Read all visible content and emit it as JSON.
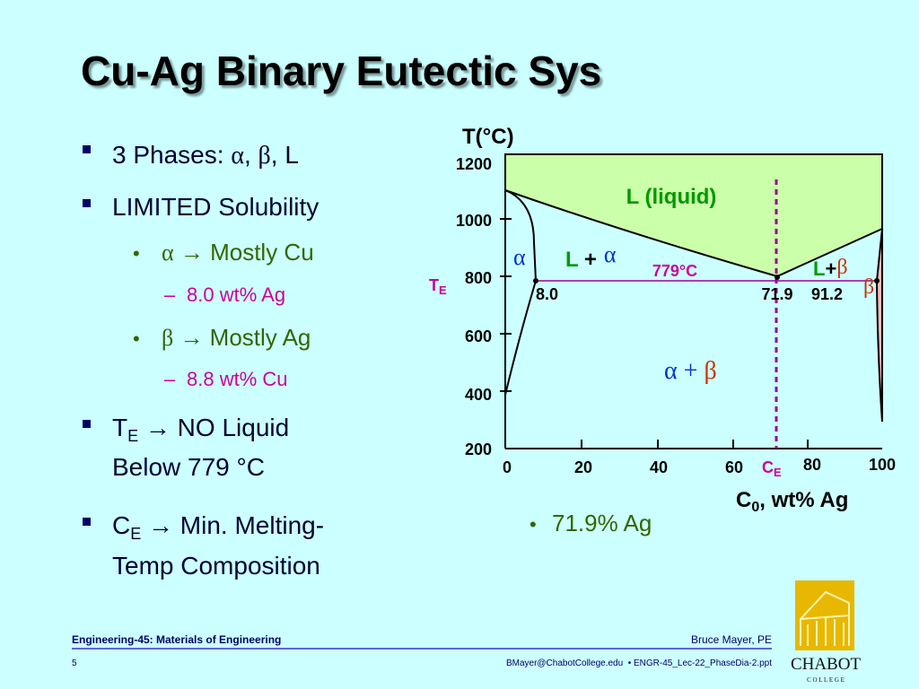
{
  "title": "Cu-Ag Binary Eutectic Sys",
  "bullets": {
    "phases": [
      "3 Phases: ",
      "α",
      ", ",
      "β",
      ", L"
    ],
    "solubility": "LIMITED Solubility",
    "alpha": [
      "α",
      " → Mostly Cu"
    ],
    "alpha_detail": "8.0 wt% Ag",
    "beta": [
      "β",
      " → Mostly Ag"
    ],
    "beta_detail": "8.8 wt% Cu",
    "te": [
      "T",
      "E",
      " → NO Liquid",
      "Below 779 °C"
    ],
    "ce": [
      "C",
      "E",
      " → Min. Melting-",
      "Temp Composition"
    ],
    "ce_value": "71.9% Ag"
  },
  "diagram": {
    "y_label": "T(°C)",
    "x_label": [
      "C",
      "0",
      ", wt% Ag"
    ],
    "y_ticks": [
      "1200",
      "1000",
      "800",
      "600",
      "400",
      "200"
    ],
    "x_ticks": [
      "0",
      "20",
      "40",
      "60",
      "80",
      "100"
    ],
    "ce_label": [
      "C",
      "E"
    ],
    "te_label": [
      "T",
      "E"
    ],
    "liquid": "L (liquid)",
    "alpha": "α",
    "l_alpha": [
      "L",
      " +",
      "α"
    ],
    "eutectic_temp": "779°C",
    "l_beta": [
      "L",
      "+",
      "β"
    ],
    "beta": "β",
    "alpha_beta": [
      "α",
      " + ",
      "β"
    ],
    "points": [
      "8.0",
      "71.9",
      "91.2"
    ]
  },
  "footer": {
    "course": "Engineering-45: Materials of Engineering",
    "author": "Bruce Mayer, PE",
    "page": "5",
    "file": "BMayer@ChabotCollege.edu  • ENGR-45_Lec-22_PhaseDia-2.ppt",
    "logo": "CHABOT",
    "logo_sub": "C O L L E G E"
  }
}
